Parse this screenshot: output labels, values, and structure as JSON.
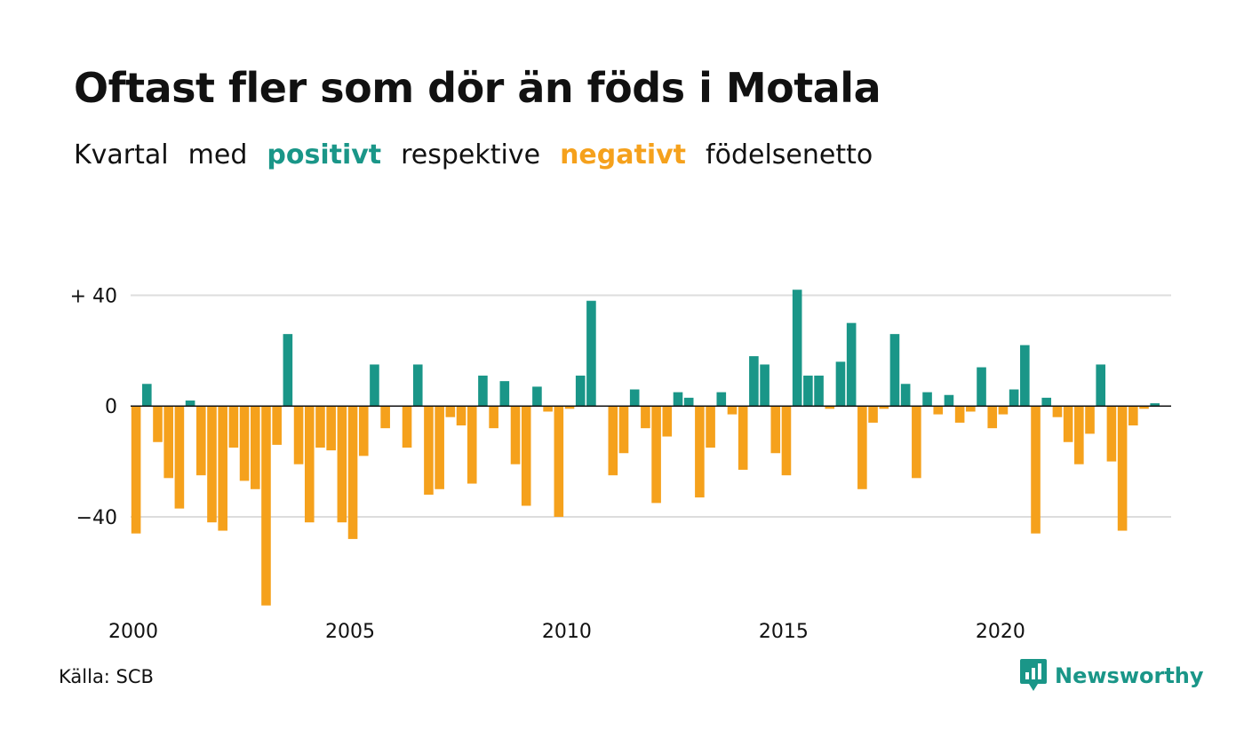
{
  "header": {
    "title": "Oftast fler som dör än föds i Motala",
    "subtitle_parts": [
      "Kvartal",
      "med",
      "positivt",
      "respektive",
      "negativt",
      "födelsenetto"
    ]
  },
  "colors": {
    "positive": "#1a9688",
    "negative": "#f5a11c",
    "text": "#111111",
    "grid": "#dddddd",
    "brand": "#1a9688"
  },
  "chart_data": {
    "type": "bar",
    "start_year": 2000,
    "bars_per_year": 4,
    "ylim": [
      -74,
      44
    ],
    "y_ticks": [
      40,
      0,
      -40
    ],
    "y_tick_labels": [
      "+ 40",
      "0",
      "−40"
    ],
    "x_ticks": [
      2000,
      2005,
      2010,
      2015,
      2020
    ],
    "x_tick_labels": [
      "2000",
      "2005",
      "2010",
      "2015",
      "2020"
    ],
    "grid": true,
    "categories": [
      "2000 Q1",
      "2000 Q2",
      "2000 Q3",
      "2000 Q4",
      "2001 Q1",
      "2001 Q2",
      "2001 Q3",
      "2001 Q4",
      "2002 Q1",
      "2002 Q2",
      "2002 Q3",
      "2002 Q4",
      "2003 Q1",
      "2003 Q2",
      "2003 Q3",
      "2003 Q4",
      "2004 Q1",
      "2004 Q2",
      "2004 Q3",
      "2004 Q4",
      "2005 Q1",
      "2005 Q2",
      "2005 Q3",
      "2005 Q4",
      "2006 Q1",
      "2006 Q2",
      "2006 Q3",
      "2006 Q4",
      "2007 Q1",
      "2007 Q2",
      "2007 Q3",
      "2007 Q4",
      "2008 Q1",
      "2008 Q2",
      "2008 Q3",
      "2008 Q4",
      "2009 Q1",
      "2009 Q2",
      "2009 Q3",
      "2009 Q4",
      "2010 Q1",
      "2010 Q2",
      "2010 Q3",
      "2010 Q4",
      "2011 Q1",
      "2011 Q2",
      "2011 Q3",
      "2011 Q4",
      "2012 Q1",
      "2012 Q2",
      "2012 Q3",
      "2012 Q4",
      "2013 Q1",
      "2013 Q2",
      "2013 Q3",
      "2013 Q4",
      "2014 Q1",
      "2014 Q2",
      "2014 Q3",
      "2014 Q4",
      "2015 Q1",
      "2015 Q2",
      "2015 Q3",
      "2015 Q4",
      "2016 Q1",
      "2016 Q2",
      "2016 Q3",
      "2016 Q4",
      "2017 Q1",
      "2017 Q2",
      "2017 Q3",
      "2017 Q4",
      "2018 Q1",
      "2018 Q2",
      "2018 Q3",
      "2018 Q4",
      "2019 Q1",
      "2019 Q2",
      "2019 Q3",
      "2019 Q4",
      "2020 Q1",
      "2020 Q2",
      "2020 Q3",
      "2020 Q4",
      "2021 Q1",
      "2021 Q2",
      "2021 Q3",
      "2021 Q4",
      "2022 Q1",
      "2022 Q2",
      "2022 Q3",
      "2022 Q4",
      "2023 Q1",
      "2023 Q2",
      "2023 Q3",
      "2023 Q4"
    ],
    "values": [
      -46,
      8,
      -13,
      -26,
      -37,
      2,
      -25,
      -42,
      -45,
      -15,
      -27,
      -30,
      -72,
      -14,
      26,
      -21,
      -42,
      -15,
      -16,
      -42,
      -48,
      -18,
      15,
      -8,
      0,
      -15,
      15,
      -32,
      -30,
      -4,
      -7,
      -28,
      11,
      -8,
      9,
      -21,
      -36,
      7,
      -2,
      -40,
      -1,
      11,
      38,
      0,
      -25,
      -17,
      6,
      -8,
      -35,
      -11,
      5,
      3,
      -33,
      -15,
      5,
      -3,
      -23,
      18,
      15,
      -17,
      -25,
      42,
      11,
      11,
      -1,
      16,
      30,
      -30,
      -6,
      -1,
      26,
      8,
      -26,
      5,
      -3,
      4,
      -6,
      -2,
      14,
      -8,
      -3,
      6,
      22,
      -46,
      3,
      -4,
      -13,
      -21,
      -10,
      15,
      -20,
      -45,
      -7,
      -1,
      1,
      0
    ]
  },
  "footer": {
    "source": "Källa: SCB",
    "brand_name": "Newsworthy",
    "brand_icon": "newsworthy-logo-icon"
  }
}
